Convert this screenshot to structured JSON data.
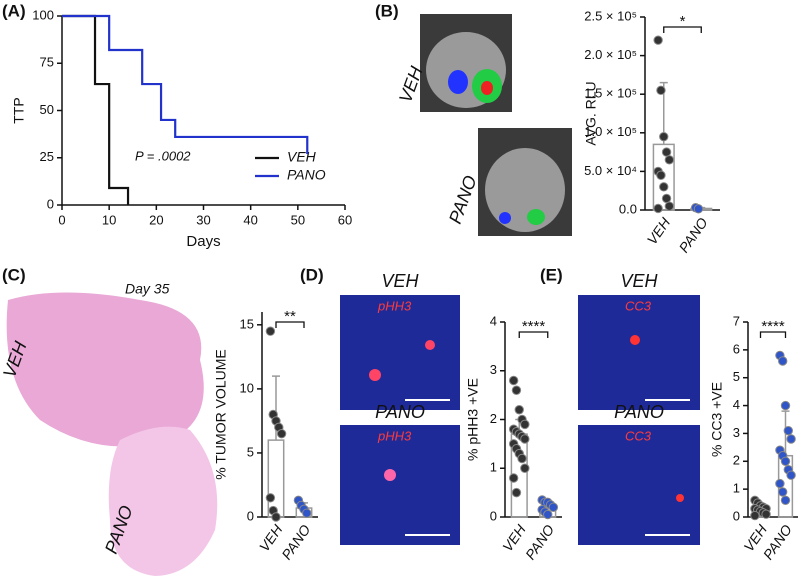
{
  "figure": {
    "labels": [
      "(A)",
      "(B)",
      "VEH",
      "PANO",
      "(C)",
      "Day 35",
      "VEH",
      "PANO",
      "(D)",
      "VEH",
      "pHH3",
      "PANO",
      "pHH3",
      "(E)",
      "VEH",
      "CC3",
      "PANO",
      "CC3"
    ]
  },
  "chart_data": [
    {
      "type": "line",
      "x_label": "Days",
      "y_label": "TTP",
      "annotation": "P = .0002",
      "legend": "right",
      "xlim": [
        0,
        60
      ],
      "xticks": [
        0,
        10,
        20,
        30,
        40,
        50,
        60
      ],
      "ylim": [
        0,
        100
      ],
      "yticks": [
        0,
        25,
        50,
        75,
        100
      ],
      "series": [
        {
          "name": "VEH",
          "color": "#111111",
          "x": [
            0,
            7,
            7,
            10,
            10,
            14,
            14
          ],
          "values": [
            100,
            100,
            64,
            64,
            9,
            9,
            0
          ]
        },
        {
          "name": "PANO",
          "color": "#2233cc",
          "x": [
            0,
            10,
            10,
            17,
            17,
            21,
            21,
            24,
            24,
            52,
            52
          ],
          "values": [
            100,
            100,
            82,
            82,
            64,
            64,
            45,
            45,
            36,
            36,
            27
          ]
        }
      ]
    },
    {
      "type": "bar_dot",
      "y_label": "AVG. RLU",
      "annotation": "*",
      "categories": [
        "VEH",
        "PANO"
      ],
      "values": [
        85000,
        2000
      ],
      "errors": [
        80000,
        1000
      ],
      "points": [
        [
          220000,
          155000,
          95000,
          75000,
          65000,
          50000,
          45000,
          30000,
          15000,
          5000,
          2000
        ],
        [
          3000,
          1500
        ]
      ],
      "point_colors": [
        "#333333",
        "#2f55c8"
      ],
      "bar_color": "#999999",
      "ylim": [
        0,
        250000
      ],
      "yticks": [
        {
          "value": 0,
          "label": "0.0"
        },
        {
          "value": 50000,
          "label": "5.0 × 10⁴"
        },
        {
          "value": 100000,
          "label": "1.0 × 10⁵"
        },
        {
          "value": 150000,
          "label": "1.5 × 10⁵"
        },
        {
          "value": 200000,
          "label": "2.0 × 10⁵"
        },
        {
          "value": 250000,
          "label": "2.5 × 10⁵"
        }
      ]
    },
    {
      "type": "bar_dot",
      "y_label": "% TUMOR VOLUME",
      "annotation": "**",
      "categories": [
        "VEH",
        "PANO"
      ],
      "values": [
        6,
        0.7
      ],
      "errors": [
        5,
        0.4
      ],
      "points": [
        [
          14.5,
          8,
          7.5,
          7,
          6.5,
          1.5,
          0.5,
          0
        ],
        [
          1.3,
          0.9,
          0.6,
          0.3
        ]
      ],
      "point_colors": [
        "#333333",
        "#2f55c8"
      ],
      "bar_color": "#999999",
      "ylim": [
        0,
        16
      ],
      "yticks": [
        0,
        5,
        10,
        15
      ]
    },
    {
      "type": "bar_dot",
      "y_label": "% pHH3 +VE",
      "annotation": "****",
      "categories": [
        "VEH",
        "PANO"
      ],
      "values": [
        1.7,
        0.2
      ],
      "errors": [
        0.3,
        0.1
      ],
      "points": [
        [
          2.8,
          2.6,
          2.2,
          2.0,
          1.9,
          1.8,
          1.75,
          1.7,
          1.65,
          1.6,
          1.5,
          1.4,
          1.3,
          1.2,
          1.0,
          0.8,
          0.5
        ],
        [
          0.35,
          0.3,
          0.3,
          0.25,
          0.2,
          0.15,
          0.1,
          0.05
        ]
      ],
      "point_colors": [
        "#333333",
        "#2f55c8"
      ],
      "bar_color": "#999999",
      "ylim": [
        0,
        4
      ],
      "yticks": [
        0,
        1,
        2,
        3,
        4
      ]
    },
    {
      "type": "bar_dot",
      "y_label": "% CC3 +VE",
      "annotation": "****",
      "categories": [
        "VEH",
        "PANO"
      ],
      "values": [
        0.3,
        2.2
      ],
      "errors": [
        0.15,
        1.6
      ],
      "points": [
        [
          0.6,
          0.5,
          0.4,
          0.35,
          0.3,
          0.3,
          0.25,
          0.2,
          0.15,
          0.1,
          0.05
        ],
        [
          5.8,
          5.6,
          4.0,
          3.1,
          2.8,
          2.4,
          2.2,
          2.0,
          1.7,
          1.5,
          1.2,
          0.9,
          0.6
        ]
      ],
      "point_colors": [
        "#333333",
        "#2f55c8"
      ],
      "bar_color": "#999999",
      "ylim": [
        0,
        7
      ],
      "yticks": [
        0,
        1,
        2,
        3,
        4,
        5,
        6,
        7
      ]
    }
  ]
}
